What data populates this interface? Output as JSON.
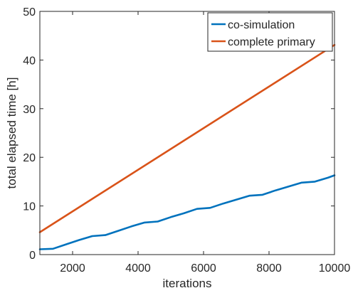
{
  "chart_data": {
    "type": "line",
    "xlabel": "iterations",
    "ylabel": "total elapsed time [h]",
    "xlim": [
      1000,
      10000
    ],
    "ylim": [
      0,
      50
    ],
    "xticks": [
      2000,
      4000,
      6000,
      8000,
      10000
    ],
    "yticks": [
      0,
      10,
      20,
      30,
      40,
      50
    ],
    "grid": false,
    "legend_position": "top-right",
    "series": [
      {
        "name": "co-simulation",
        "color": "#0072BD",
        "x": [
          1000,
          1400,
          1800,
          2200,
          2600,
          3000,
          3400,
          3800,
          4200,
          4600,
          5000,
          5400,
          5800,
          6200,
          6600,
          7000,
          7400,
          7800,
          8200,
          8600,
          9000,
          9400,
          9800,
          10000
        ],
        "y": [
          1.1,
          1.2,
          2.1,
          3.0,
          3.8,
          4.0,
          4.9,
          5.8,
          6.6,
          6.8,
          7.7,
          8.5,
          9.4,
          9.6,
          10.5,
          11.3,
          12.1,
          12.3,
          13.2,
          14.0,
          14.8,
          15.0,
          15.8,
          16.3
        ]
      },
      {
        "name": "complete primary",
        "color": "#D95319",
        "x": [
          1000,
          10000
        ],
        "y": [
          4.6,
          43.1
        ]
      }
    ]
  }
}
